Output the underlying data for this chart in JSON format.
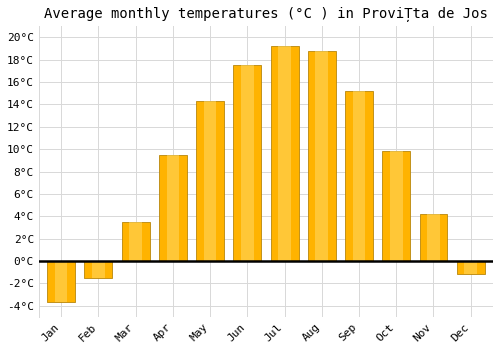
{
  "title": "Average monthly temperatures (°C ) in ProviȚta de Jos",
  "months": [
    "Jan",
    "Feb",
    "Mar",
    "Apr",
    "May",
    "Jun",
    "Jul",
    "Aug",
    "Sep",
    "Oct",
    "Nov",
    "Dec"
  ],
  "values": [
    -3.7,
    -1.5,
    3.5,
    9.5,
    14.3,
    17.5,
    19.2,
    18.8,
    15.2,
    9.8,
    4.2,
    -1.2
  ],
  "bar_color": "#FFB300",
  "bar_edge_color": "#B8860B",
  "background_color": "#FFFFFF",
  "grid_color": "#D8D8D8",
  "ylim": [
    -5,
    21
  ],
  "yticks": [
    -4,
    -2,
    0,
    2,
    4,
    6,
    8,
    10,
    12,
    14,
    16,
    18,
    20
  ],
  "title_fontsize": 10,
  "tick_fontsize": 8,
  "zero_line_color": "#000000"
}
